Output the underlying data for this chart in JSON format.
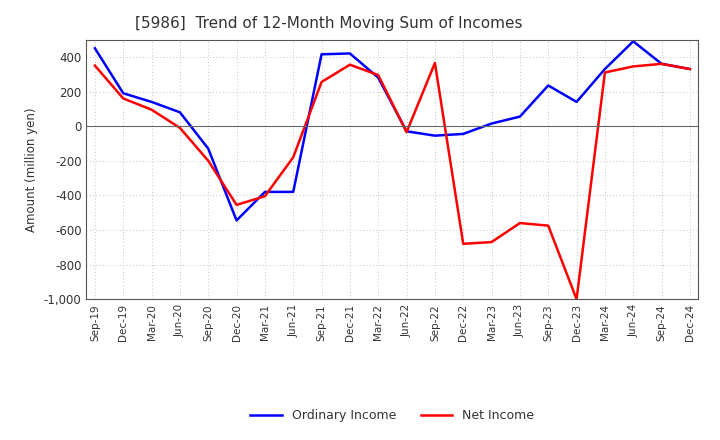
{
  "title": "[5986]  Trend of 12-Month Moving Sum of Incomes",
  "ylabel": "Amount (million yen)",
  "x_labels": [
    "Sep-19",
    "Dec-19",
    "Mar-20",
    "Jun-20",
    "Sep-20",
    "Dec-20",
    "Mar-21",
    "Jun-21",
    "Sep-21",
    "Dec-21",
    "Mar-22",
    "Jun-22",
    "Sep-22",
    "Dec-22",
    "Mar-23",
    "Jun-23",
    "Sep-23",
    "Dec-23",
    "Mar-24",
    "Jun-24",
    "Sep-24",
    "Dec-24"
  ],
  "ordinary_income": [
    450,
    190,
    140,
    80,
    -130,
    -545,
    -380,
    -380,
    415,
    420,
    280,
    -30,
    -55,
    -45,
    15,
    55,
    235,
    140,
    330,
    490,
    360,
    330
  ],
  "net_income": [
    350,
    160,
    95,
    -10,
    -200,
    -455,
    -405,
    -180,
    255,
    355,
    295,
    -35,
    365,
    -680,
    -670,
    -560,
    -575,
    -1000,
    310,
    345,
    360,
    330
  ],
  "ordinary_color": "#0000ff",
  "net_color": "#ff0000",
  "ylim": [
    -1000,
    500
  ],
  "yticks": [
    -1000,
    -800,
    -600,
    -400,
    -200,
    0,
    200,
    400
  ],
  "background_color": "#ffffff",
  "grid_color": "#b0b0b0",
  "legend_labels": [
    "Ordinary Income",
    "Net Income"
  ],
  "title_fontsize": 11,
  "title_color": "#333333"
}
